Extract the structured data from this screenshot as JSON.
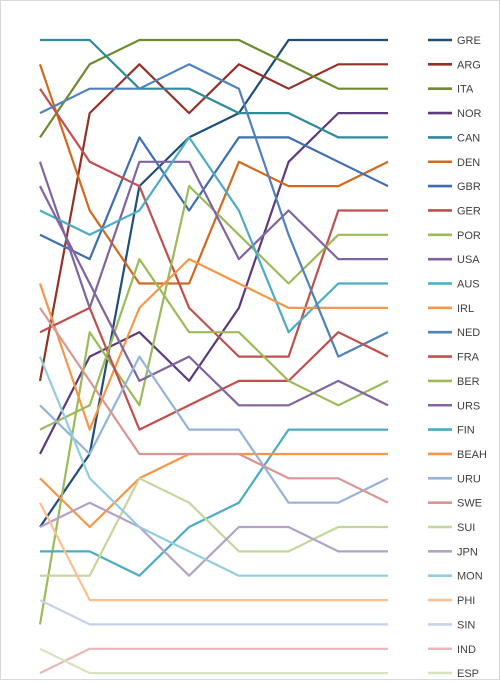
{
  "chart_data": {
    "type": "line",
    "title": "",
    "xlabel": "",
    "ylabel": "",
    "x": [
      1,
      2,
      3,
      4,
      5,
      6,
      7,
      8
    ],
    "ylim": [
      25,
      1
    ],
    "y_inverted": true,
    "grid": false,
    "legend": "right",
    "series": [
      {
        "name": "GRE",
        "color": "#1F4E79",
        "values": [
          21,
          18,
          7,
          5,
          4,
          1,
          1,
          1
        ]
      },
      {
        "name": "ARG",
        "color": "#943126",
        "values": [
          15,
          4,
          2,
          4,
          2,
          3,
          2,
          2
        ]
      },
      {
        "name": "ITA",
        "color": "#6E8B2E",
        "values": [
          5,
          2,
          1,
          1,
          1,
          2,
          3,
          3
        ]
      },
      {
        "name": "NOR",
        "color": "#5B3A7E",
        "values": [
          18,
          14,
          13,
          15,
          12,
          6,
          4,
          4
        ]
      },
      {
        "name": "CAN",
        "color": "#2E8B99",
        "values": [
          1,
          1,
          3,
          3,
          4,
          4,
          5,
          5
        ]
      },
      {
        "name": "DEN",
        "color": "#D2691E",
        "values": [
          2,
          8,
          11,
          11,
          6,
          7,
          7,
          6
        ]
      },
      {
        "name": "GBR",
        "color": "#3E6FB0",
        "values": [
          9,
          10,
          5,
          8,
          5,
          5,
          6,
          7
        ]
      },
      {
        "name": "GER",
        "color": "#C0504D",
        "values": [
          3,
          6,
          7,
          12,
          14,
          14,
          8,
          8
        ]
      },
      {
        "name": "POR",
        "color": "#9BBB59",
        "values": [
          25,
          13,
          16,
          7,
          9,
          11,
          9,
          9
        ]
      },
      {
        "name": "USA",
        "color": "#8064A2",
        "values": [
          6,
          12,
          6,
          6,
          10,
          8,
          10,
          10
        ]
      },
      {
        "name": "AUS",
        "color": "#4BACC6",
        "values": [
          8,
          9,
          8,
          5,
          8,
          13,
          11,
          11
        ]
      },
      {
        "name": "IRL",
        "color": "#F79646",
        "values": [
          11,
          17,
          12,
          10,
          11,
          12,
          12,
          12
        ]
      },
      {
        "name": "NED",
        "color": "#4F81BD",
        "values": [
          4,
          3,
          3,
          2,
          3,
          9,
          14,
          13
        ]
      },
      {
        "name": "FRA",
        "color": "#C0504D",
        "values": [
          13,
          12,
          17,
          16,
          15,
          15,
          13,
          14
        ]
      },
      {
        "name": "BER",
        "color": "#9BBB59",
        "values": [
          17,
          16,
          10,
          13,
          13,
          15,
          16,
          15
        ]
      },
      {
        "name": "URS",
        "color": "#8064A2",
        "values": [
          7,
          11,
          15,
          14,
          16,
          16,
          15,
          16
        ]
      },
      {
        "name": "FIN",
        "color": "#4BACC6",
        "values": [
          22,
          22,
          23,
          21,
          20,
          17,
          17,
          17
        ]
      },
      {
        "name": "BEAH",
        "color": "#F79646",
        "values": [
          19,
          21,
          19,
          18,
          18,
          18,
          18,
          18
        ]
      },
      {
        "name": "URU",
        "color": "#95B3D7",
        "values": [
          16,
          18,
          14,
          17,
          17,
          20,
          20,
          19
        ]
      },
      {
        "name": "SWE",
        "color": "#D99694",
        "values": [
          12,
          15,
          18,
          18,
          18,
          19,
          19,
          20
        ]
      },
      {
        "name": "SUI",
        "color": "#C3D69B",
        "values": [
          23,
          23,
          19,
          20,
          22,
          22,
          21,
          21
        ]
      },
      {
        "name": "JPN",
        "color": "#B3A2C7",
        "values": [
          21,
          20,
          21,
          23,
          21,
          21,
          22,
          22
        ]
      },
      {
        "name": "MON",
        "color": "#93CDDD",
        "values": [
          14,
          19,
          21,
          22,
          23,
          23,
          23,
          23
        ]
      },
      {
        "name": "PHI",
        "color": "#FAC090",
        "values": [
          20,
          24,
          24,
          24,
          24,
          24,
          24,
          24
        ]
      },
      {
        "name": "SIN",
        "color": "#C5D3E8",
        "values": [
          24,
          25,
          25,
          25,
          25,
          25,
          25,
          25
        ]
      },
      {
        "name": "IND",
        "color": "#E6B9B8",
        "values": [
          27,
          26,
          26,
          26,
          26,
          26,
          26,
          26
        ]
      },
      {
        "name": "ESP",
        "color": "#D7E4BD",
        "values": [
          26,
          27,
          27,
          27,
          27,
          27,
          27,
          27
        ]
      }
    ]
  }
}
